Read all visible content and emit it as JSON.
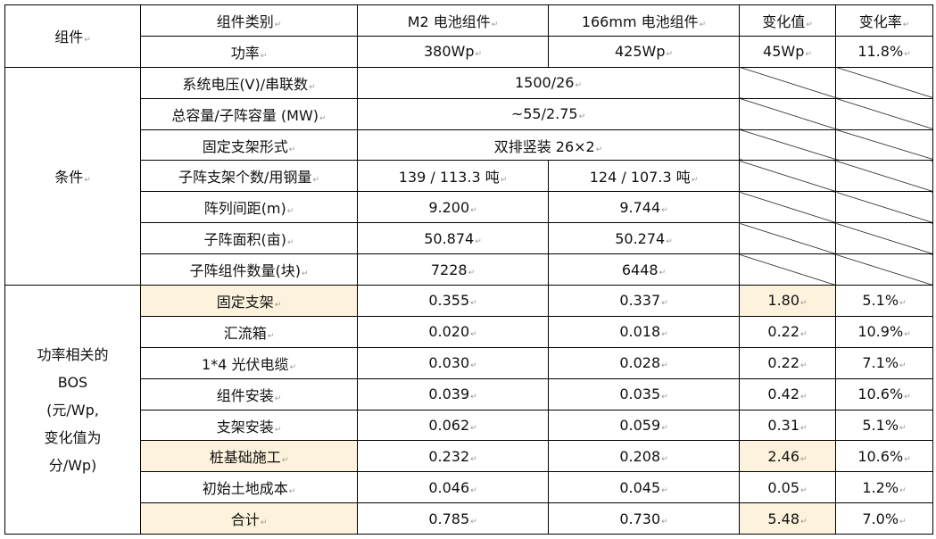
{
  "header": {
    "group_label": "组件",
    "row1": [
      "组件类别",
      "M2 电池组件",
      "166mm 电池组件",
      "变化值",
      "变化率"
    ],
    "row2": [
      "功率",
      "380Wp",
      "425Wp",
      "45Wp",
      "11.8%"
    ]
  },
  "conditions": {
    "group_label": "条件",
    "merged_rows": [
      {
        "label": "系统电压(V)/串联数",
        "value": "1500/26"
      },
      {
        "label": "总容量/子阵容量 (MW)",
        "value": "~55/2.75"
      },
      {
        "label": "固定支架形式",
        "value": "双排竖装  26×2"
      }
    ],
    "split_rows": [
      {
        "label": "子阵支架个数/用钢量",
        "m2": "139 / 113.3 吨",
        "mm166": "124 / 107.3 吨"
      },
      {
        "label": "阵列间距(m)",
        "m2": "9.200",
        "mm166": "9.744"
      },
      {
        "label": "子阵面积(亩)",
        "m2": "50.874",
        "mm166": "50.274"
      },
      {
        "label": "子阵组件数量(块)",
        "m2": "7228",
        "mm166": "6448"
      }
    ]
  },
  "bos": {
    "group_label_lines": [
      "功率相关的",
      "BOS",
      "(元/Wp,",
      "变化值为",
      "分/Wp)"
    ],
    "highlight_color": "#fdf2dc",
    "rows": [
      {
        "label": "固定支架",
        "m2": "0.355",
        "mm166": "0.337",
        "change": "1.80",
        "rate": "5.1%",
        "highlight": true
      },
      {
        "label": "汇流箱",
        "m2": "0.020",
        "mm166": "0.018",
        "change": "0.22",
        "rate": "10.9%",
        "highlight": false
      },
      {
        "label": "1*4 光伏电缆",
        "m2": "0.030",
        "mm166": "0.028",
        "change": "0.22",
        "rate": "7.1%",
        "highlight": false
      },
      {
        "label": "组件安装",
        "m2": "0.039",
        "mm166": "0.035",
        "change": "0.42",
        "rate": "10.6%",
        "highlight": false
      },
      {
        "label": "支架安装",
        "m2": "0.062",
        "mm166": "0.059",
        "change": "0.31",
        "rate": "5.1%",
        "highlight": false
      },
      {
        "label": "桩基础施工",
        "m2": "0.232",
        "mm166": "0.208",
        "change": "2.46",
        "rate": "10.6%",
        "highlight": true
      },
      {
        "label": "初始土地成本",
        "m2": "0.046",
        "mm166": "0.045",
        "change": "0.05",
        "rate": "1.2%",
        "highlight": false
      },
      {
        "label": "合计",
        "m2": "0.785",
        "mm166": "0.730",
        "change": "5.48",
        "rate": "7.0%",
        "highlight": true
      }
    ]
  }
}
